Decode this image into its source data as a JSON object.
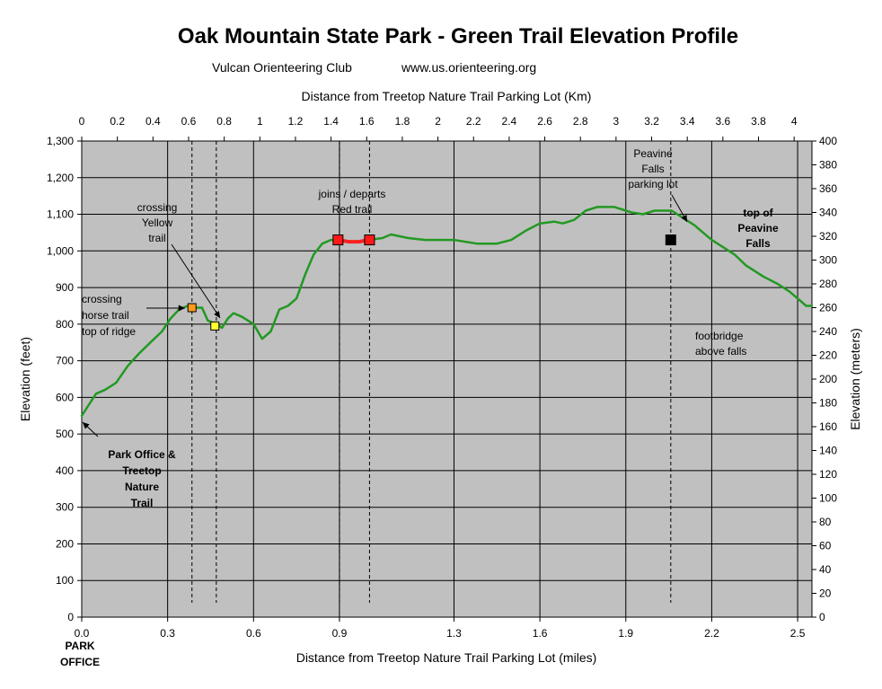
{
  "chart_data": {
    "type": "line",
    "title": "Oak Mountain State Park - Green Trail Elevation Profile",
    "subtitle_left": "Vulcan Orienteering Club",
    "subtitle_right": "www.us.orienteering.org",
    "xlabel": "Distance from Treetop Nature Trail Parking Lot (miles)",
    "x2label": "Distance from Treetop Nature Trail Parking Lot (Km)",
    "ylabel": "Elevation (feet)",
    "y2label": "Elevation (meters)",
    "xlim": [
      0,
      2.55
    ],
    "ylim": [
      0,
      1300
    ],
    "x2lim": [
      0,
      4.1
    ],
    "y2lim": [
      0,
      400
    ],
    "x_ticks": [
      0.0,
      0.3,
      0.6,
      0.9,
      1.3,
      1.6,
      1.9,
      2.2,
      2.5
    ],
    "x_tick_labels": [
      "0.0",
      "0.3",
      "0.6",
      "0.9",
      "1.3",
      "1.6",
      "1.9",
      "2.2",
      "2.5"
    ],
    "x2_ticks": [
      0,
      0.2,
      0.4,
      0.6,
      0.8,
      1,
      1.2,
      1.4,
      1.6,
      1.8,
      2,
      2.2,
      2.4,
      2.6,
      2.8,
      3,
      3.2,
      3.4,
      3.6,
      3.8,
      4
    ],
    "x2_tick_labels": [
      "0",
      "0.2",
      "0.4",
      "0.6",
      "0.8",
      "1",
      "1.2",
      "1.4",
      "1.6",
      "1.8",
      "2",
      "2.2",
      "2.4",
      "2.6",
      "2.8",
      "3",
      "3.2",
      "3.4",
      "3.6",
      "3.8",
      "4"
    ],
    "y_ticks": [
      0,
      100,
      200,
      300,
      400,
      500,
      600,
      700,
      800,
      900,
      1000,
      1100,
      1200,
      1300
    ],
    "y_tick_labels": [
      "0",
      "100",
      "200",
      "300",
      "400",
      "500",
      "600",
      "700",
      "800",
      "900",
      "1,000",
      "1,100",
      "1,200",
      "1,300"
    ],
    "y2_ticks": [
      0,
      20,
      40,
      60,
      80,
      100,
      120,
      140,
      160,
      180,
      200,
      220,
      240,
      260,
      280,
      300,
      320,
      340,
      360,
      380,
      400
    ],
    "y2_tick_labels": [
      "0",
      "20",
      "40",
      "60",
      "80",
      "100",
      "120",
      "140",
      "160",
      "180",
      "200",
      "220",
      "240",
      "260",
      "280",
      "300",
      "320",
      "340",
      "360",
      "380",
      "400"
    ],
    "grid": true,
    "series": [
      {
        "color": "#229922",
        "x": [
          0.0,
          0.025,
          0.05,
          0.08,
          0.12,
          0.16,
          0.2,
          0.24,
          0.28,
          0.31,
          0.34,
          0.37,
          0.39,
          0.42,
          0.44,
          0.47,
          0.49,
          0.51,
          0.53,
          0.56,
          0.6,
          0.63,
          0.66,
          0.69,
          0.72,
          0.75,
          0.78,
          0.81,
          0.84,
          0.87,
          0.9,
          0.95,
          1.0,
          1.05,
          1.08,
          1.11,
          1.14,
          1.2,
          1.3,
          1.38,
          1.45,
          1.5,
          1.55,
          1.6,
          1.65,
          1.68,
          1.72,
          1.76,
          1.8,
          1.86,
          1.92,
          1.96,
          2.0,
          2.06,
          2.1,
          2.14,
          2.17,
          2.2,
          2.24,
          2.28,
          2.32,
          2.38,
          2.43,
          2.47,
          2.5,
          2.53,
          2.55
        ],
        "y": [
          550,
          580,
          610,
          620,
          640,
          685,
          720,
          750,
          780,
          815,
          840,
          850,
          845,
          845,
          810,
          800,
          790,
          815,
          830,
          820,
          800,
          760,
          780,
          840,
          850,
          870,
          935,
          990,
          1020,
          1030,
          1030,
          1025,
          1030,
          1035,
          1045,
          1040,
          1035,
          1030,
          1030,
          1020,
          1020,
          1030,
          1055,
          1075,
          1080,
          1075,
          1085,
          1110,
          1120,
          1120,
          1105,
          1100,
          1110,
          1110,
          1090,
          1070,
          1050,
          1030,
          1010,
          990,
          960,
          930,
          910,
          890,
          870,
          850,
          850
        ]
      },
      {
        "color": "#ff2020",
        "x": [
          0.9,
          0.93,
          0.97,
          1.0
        ],
        "y": [
          1030,
          1025,
          1025,
          1030
        ]
      }
    ],
    "markers": [
      {
        "x": 0.385,
        "y": 845,
        "color": "#ff9a1a"
      },
      {
        "x": 0.465,
        "y": 795,
        "color": "#ffff33"
      },
      {
        "x": 0.895,
        "y": 1030,
        "color": "#ff1a1a"
      },
      {
        "x": 1.005,
        "y": 1030,
        "color": "#ff1a1a"
      },
      {
        "x": 2.057,
        "y": 1030,
        "color": "#000000"
      }
    ],
    "vlines": [
      0.385,
      0.47,
      0.9,
      1.005,
      2.057
    ],
    "annotations": [
      {
        "text": "crossing horse trail top of ridge",
        "lines": [
          "crossing",
          "horse trail",
          "top of ridge"
        ],
        "bold": false
      },
      {
        "text": "crossing Yellow trail",
        "lines": [
          "crossing",
          "Yellow",
          "trail"
        ],
        "bold": false
      },
      {
        "text": "joins / departs Red trail",
        "lines": [
          "joins / departs",
          "Red trail"
        ],
        "bold": false
      },
      {
        "text": "Peavine Falls parking lot",
        "lines": [
          "Peavine",
          "Falls",
          "parking lot"
        ],
        "bold": false
      },
      {
        "text": "top of Peavine Falls",
        "lines": [
          "top of",
          "Peavine",
          "Falls"
        ],
        "bold": true
      },
      {
        "text": "footbridge above falls",
        "lines": [
          "footbridge",
          "above falls"
        ],
        "bold": false
      },
      {
        "text": "Park Office & Treetop Nature Trail",
        "lines": [
          "Park Office &",
          "Treetop",
          "Nature",
          "Trail"
        ],
        "bold": true
      },
      {
        "text": "PARK OFFICE",
        "lines": [
          "PARK",
          "OFFICE"
        ],
        "bold": true
      }
    ]
  },
  "colors": {
    "plot_bg": "#c0c0c0",
    "gridline": "#000000",
    "dash_line": "#000000"
  }
}
